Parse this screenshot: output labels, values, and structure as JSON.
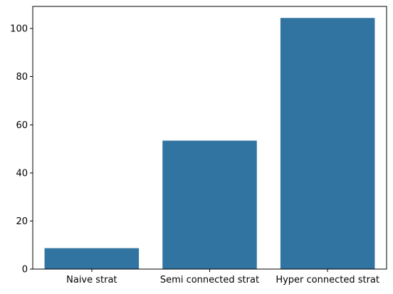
{
  "chart_data": {
    "type": "bar",
    "categories": [
      "Naive strat",
      "Semi connected strat",
      "Hyper connected strat"
    ],
    "values": [
      8.7,
      53.4,
      104.4
    ],
    "title": "",
    "xlabel": "",
    "ylabel": "",
    "ylim": [
      0,
      109.2
    ],
    "yticks": [
      0,
      20,
      40,
      60,
      80,
      100
    ],
    "grid": false,
    "legend": "none",
    "bar_color": "#3274a1"
  }
}
